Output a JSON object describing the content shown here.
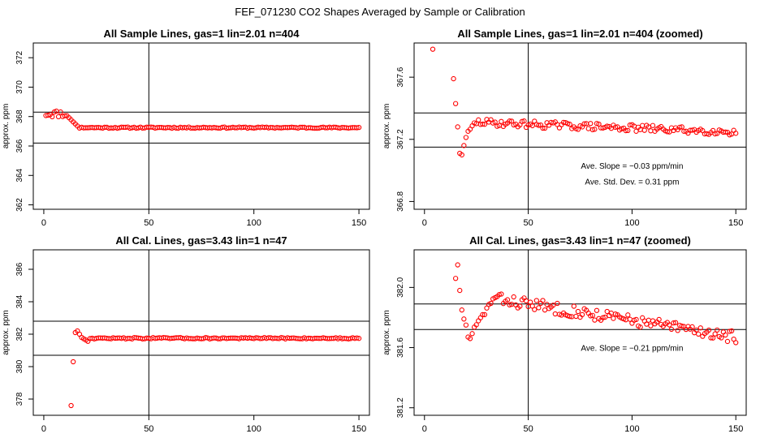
{
  "page": {
    "title": "FEF_071230  CO2 Shapes Averaged by Sample or Calibration"
  },
  "chart_data": [
    {
      "type": "scatter",
      "title": "All Sample Lines, gas=1 lin=2.01 n=404",
      "ylabel": "approx. ppm",
      "xlabel": "",
      "xlim": [
        -5,
        155
      ],
      "ylim": [
        361.7,
        373
      ],
      "xticks": [
        0,
        50,
        100,
        150
      ],
      "yticks": [
        362,
        364,
        366,
        368,
        370,
        372
      ],
      "ytick_labels": [
        "362",
        "364",
        "366",
        "368",
        "370",
        "372"
      ],
      "hlines": [
        368.3,
        366.2
      ],
      "vlines": [
        50
      ],
      "series": [
        {
          "color": "#ff0000",
          "x": [],
          "y": []
        }
      ],
      "annotations": []
    },
    {
      "type": "scatter",
      "title": "All Sample Lines, gas=1 lin=2.01 n=404 (zoomed)",
      "ylabel": "approx. ppm",
      "xlabel": "",
      "xlim": [
        -5,
        155
      ],
      "ylim": [
        366.75,
        367.82
      ],
      "xticks": [
        0,
        50,
        100,
        150
      ],
      "yticks": [
        366.8,
        367.2,
        367.6
      ],
      "ytick_labels": [
        "366.8",
        "367.2",
        "367.6"
      ],
      "hlines": [
        367.37,
        367.15
      ],
      "vlines": [
        50
      ],
      "series": [
        {
          "color": "#ff0000",
          "x": [],
          "y": []
        }
      ],
      "annotations": [
        {
          "text": "Ave. Slope =  −0.03  ppm/min",
          "x": 100,
          "y": 367.01
        },
        {
          "text": "Ave. Std. Dev. =  0.31  ppm",
          "x": 100,
          "y": 366.91
        }
      ]
    },
    {
      "type": "scatter",
      "title": "All Cal. Lines, gas=3.43 lin=1 n=47",
      "ylabel": "approx. ppm",
      "xlabel": "",
      "xlim": [
        -5,
        155
      ],
      "ylim": [
        377.0,
        387.2
      ],
      "xticks": [
        0,
        50,
        100,
        150
      ],
      "yticks": [
        378,
        380,
        382,
        384,
        386
      ],
      "ytick_labels": [
        "378",
        "380",
        "382",
        "384",
        "386"
      ],
      "hlines": [
        382.8,
        380.7
      ],
      "vlines": [
        50
      ],
      "series": [
        {
          "color": "#ff0000",
          "x": [],
          "y": []
        }
      ],
      "annotations": []
    },
    {
      "type": "scatter",
      "title": "All Cal. Lines, gas=3.43 lin=1 n=47 (zoomed)",
      "ylabel": "approx. ppm",
      "xlabel": "",
      "xlim": [
        -5,
        155
      ],
      "ylim": [
        381.15,
        382.25
      ],
      "xticks": [
        0,
        50,
        100,
        150
      ],
      "yticks": [
        381.2,
        381.6,
        382.0
      ],
      "ytick_labels": [
        "381.2",
        "381.6",
        "382.0"
      ],
      "hlines": [
        381.89,
        381.72
      ],
      "vlines": [
        50
      ],
      "series": [
        {
          "color": "#ff0000",
          "x": [],
          "y": []
        }
      ],
      "annotations": [
        {
          "text": "Ave. Slope =  −0.21  ppm/min",
          "x": 100,
          "y": 381.58
        }
      ]
    }
  ]
}
